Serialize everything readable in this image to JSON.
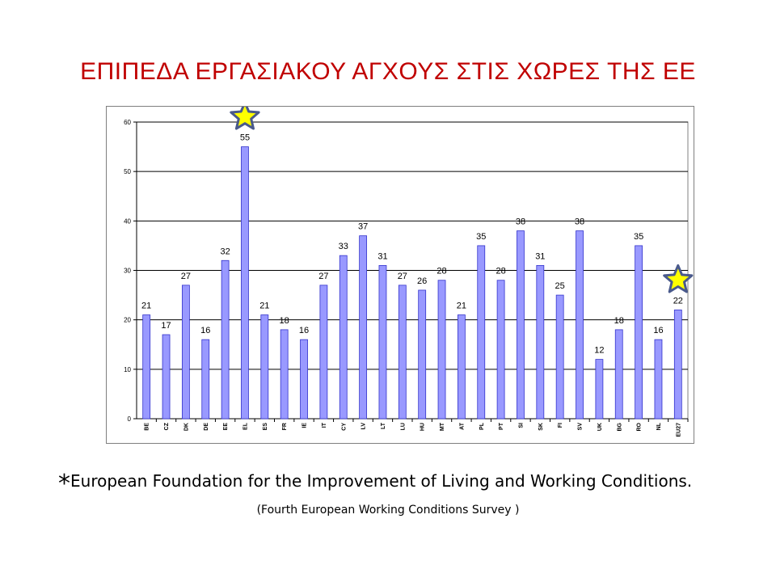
{
  "title": "ΕΠΙΠΕΔΑ ΕΡΓΑΣΙΑΚΟΥ ΑΓΧΟΥΣ ΣΤΙΣ  ΧΩΡΕΣ ΤΗΣ ΕΕ",
  "footnote": {
    "marker": "*",
    "text": "European Foundation for the Improvement of Living and Working Conditions.",
    "source": "(Fourth European Working Conditions Survey )"
  },
  "colors": {
    "title": "#c00000",
    "bar": "#9999ff",
    "bar_stroke": "#3333cc",
    "star_fill": "#ffff00",
    "star_stroke": "#4a5a8c"
  },
  "chart_data": {
    "type": "bar",
    "title": "",
    "xlabel": "",
    "ylabel": "",
    "ylim": [
      0,
      60
    ],
    "yticks": [
      0,
      10,
      20,
      30,
      40,
      50,
      60
    ],
    "grid": true,
    "legend": "none",
    "categories": [
      "BE",
      "CZ",
      "DK",
      "DE",
      "EE",
      "EL",
      "ES",
      "FR",
      "IE",
      "IT",
      "CY",
      "LV",
      "LT",
      "LU",
      "HU",
      "MT",
      "AT",
      "PL",
      "PT",
      "SI",
      "SK",
      "FI",
      "SV",
      "UK",
      "BG",
      "RO",
      "NL",
      "EU27"
    ],
    "values": [
      21,
      17,
      27,
      16,
      32,
      55,
      21,
      18,
      16,
      27,
      33,
      37,
      31,
      27,
      26,
      28,
      21,
      35,
      28,
      38,
      31,
      25,
      38,
      12,
      18,
      35,
      16,
      22
    ],
    "data_labels": [
      "21",
      "17",
      "27",
      "16",
      "32",
      "55",
      "21",
      "18",
      "16",
      "27",
      "33",
      "37",
      "31",
      "27",
      "26",
      "28",
      "21",
      "35",
      "28",
      "38",
      "31",
      "25",
      "38",
      "12",
      "18",
      "35",
      "16",
      "22"
    ],
    "highlighted": [
      "EL",
      "EU27"
    ]
  }
}
